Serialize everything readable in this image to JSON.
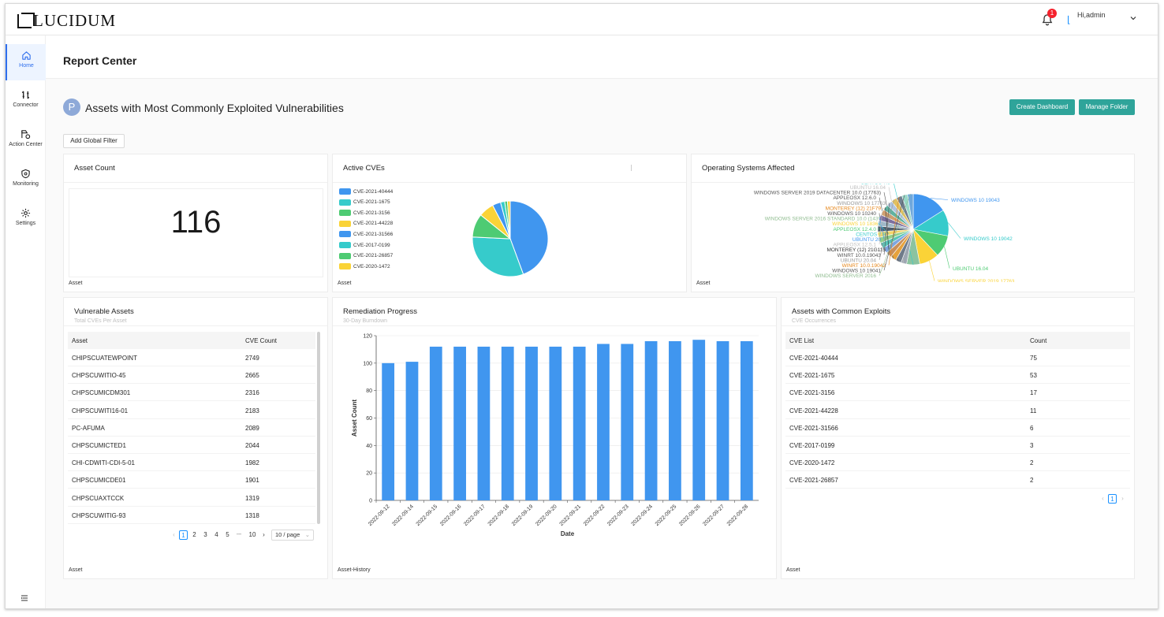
{
  "app": {
    "logo": "LUCIDUM"
  },
  "header": {
    "notif_count": "1",
    "user_glyph": "⌊",
    "user_name": "Hi,admin"
  },
  "sidebar": {
    "items": [
      {
        "label": "Home",
        "icon": "home-icon"
      },
      {
        "label": "Connector",
        "icon": "connector-icon"
      },
      {
        "label": "Action Center",
        "icon": "action-center-icon"
      },
      {
        "label": "Monitoring",
        "icon": "shield-icon"
      },
      {
        "label": "Settings",
        "icon": "gear-icon"
      }
    ]
  },
  "page": {
    "title": "Report Center"
  },
  "dashboard": {
    "avatar": "P",
    "title": "Assets with Most Commonly Exploited Vulnerabilities",
    "create_label": "Create Dashboard",
    "manage_label": "Manage Folder",
    "filter_label": "Add Global Filter"
  },
  "asset_count": {
    "title": "Asset Count",
    "value": "116",
    "footer": "Asset"
  },
  "active_cves": {
    "title": "Active CVEs",
    "footer": "Asset",
    "colors": [
      "#4096ef",
      "#36cbcb",
      "#4ecb73",
      "#fad337",
      "#4096ef",
      "#36cbcb",
      "#4ecb73",
      "#fad337"
    ]
  },
  "os_affected": {
    "title": "Operating Systems Affected",
    "footer": "Asset",
    "labels": [
      {
        "text": "WINDOWS 10 19043",
        "color": "#4096ef"
      },
      {
        "text": "WINDOWS 10 19042",
        "color": "#36cbcb"
      },
      {
        "text": "UBUNTU 16.04",
        "color": "#4ecb73"
      },
      {
        "text": "WINDOWS SERVER 2019 17763",
        "color": "#fad337"
      },
      {
        "text": "CENTOS 7.8",
        "color": "#36cbcb"
      },
      {
        "text": "UBUNTU 16.04",
        "color": "#bfbfbf"
      },
      {
        "text": "WINDOWS SERVER 2019 DATACENTER 10.0 (17763)",
        "color": "#555555"
      },
      {
        "text": "APPLEOSX 12.6.0",
        "color": "#555555"
      },
      {
        "text": "WINDOWS 10 17763",
        "color": "#999999"
      },
      {
        "text": "MONTEREY (12) 21F79",
        "color": "#e6861a"
      },
      {
        "text": "WINDOWS 10 10240",
        "color": "#555555"
      },
      {
        "text": "WINDOWS SERVER 2016 STANDARD 10.0 (14393)",
        "color": "#8fbc8f"
      },
      {
        "text": "WINDOWS 10 18363",
        "color": "#fad337"
      },
      {
        "text": "APPLEOSX 12.4.0",
        "color": "#4ecb73"
      },
      {
        "text": "CENTOS 7.8",
        "color": "#36cbcb"
      },
      {
        "text": "UBUNTU 20",
        "color": "#4096ef"
      },
      {
        "text": "APPLEOSX 12.5.1",
        "color": "#bfbfbf"
      },
      {
        "text": "MONTEREY (12) 21G115",
        "color": "#333333"
      },
      {
        "text": "WINRT 10.0.19043",
        "color": "#555555"
      },
      {
        "text": "UBUNTU 20.04",
        "color": "#999999"
      },
      {
        "text": "WINRT 10.0.19042",
        "color": "#e6861a"
      },
      {
        "text": "WINDOWS 10 19041",
        "color": "#555555"
      },
      {
        "text": "WINDOWS SERVER 2016",
        "color": "#8fbc8f"
      }
    ]
  },
  "vulnerable_assets": {
    "title": "Vulnerable Assets",
    "subtitle": "Total CVEs Per Asset",
    "footer": "Asset",
    "columns": [
      "Asset",
      "CVE Count"
    ],
    "rows": [
      {
        "asset": "CHIPSCUATEWPOINT",
        "count": "2749"
      },
      {
        "asset": "CHPSCUWITIO-45",
        "count": "2665"
      },
      {
        "asset": "CHPSCUMICDM301",
        "count": "2316"
      },
      {
        "asset": "CHPSCUWITI16-01",
        "count": "2183"
      },
      {
        "asset": "PC-AFUMA",
        "count": "2089"
      },
      {
        "asset": "CHPSCUMICTED1",
        "count": "2044"
      },
      {
        "asset": "CHI-CDWITI-CDI-5-01",
        "count": "1982"
      },
      {
        "asset": "CHPSCUMICDE01",
        "count": "1901"
      },
      {
        "asset": "CHPSCUAXTCCK",
        "count": "1319"
      },
      {
        "asset": "CHPSCUWITIG-93",
        "count": "1318"
      }
    ],
    "pages": [
      "1",
      "2",
      "3",
      "4",
      "5",
      "10"
    ],
    "ellipsis": "•••",
    "page_size": "10 / page"
  },
  "remediation": {
    "title": "Remediation Progress",
    "subtitle": "30-Day Burndown",
    "footer": "Asset-History"
  },
  "chart_data": {
    "type": "bar",
    "categories": [
      "2022-09-12",
      "2022-09-14",
      "2022-09-15",
      "2022-09-16",
      "2022-09-17",
      "2022-09-18",
      "2022-09-19",
      "2022-09-20",
      "2022-09-21",
      "2022-09-22",
      "2022-09-23",
      "2022-09-24",
      "2022-09-25",
      "2022-09-26",
      "2022-09-27",
      "2022-09-28"
    ],
    "values": [
      100,
      101,
      112,
      112,
      112,
      112,
      112,
      112,
      112,
      114,
      114,
      116,
      116,
      117,
      116,
      116
    ],
    "xlabel": "Date",
    "ylabel": "Asset Count",
    "ylim": [
      0,
      120
    ],
    "yticks": [
      0,
      20,
      40,
      60,
      80,
      100,
      120
    ],
    "color": "#4096ef",
    "grid": true
  },
  "common_exploits": {
    "title": "Assets with Common Exploits",
    "subtitle": "CVE Occurrences",
    "footer": "Asset",
    "columns": [
      "CVE List",
      "Count"
    ],
    "rows": [
      {
        "cve": "CVE-2021-40444",
        "count": "75"
      },
      {
        "cve": "CVE-2021-1675",
        "count": "53"
      },
      {
        "cve": "CVE-2021-3156",
        "count": "17"
      },
      {
        "cve": "CVE-2021-44228",
        "count": "11"
      },
      {
        "cve": "CVE-2021-31566",
        "count": "6"
      },
      {
        "cve": "CVE-2017-0199",
        "count": "3"
      },
      {
        "cve": "CVE-2020-1472",
        "count": "2"
      },
      {
        "cve": "CVE-2021-26857",
        "count": "2"
      }
    ],
    "page": "1"
  }
}
